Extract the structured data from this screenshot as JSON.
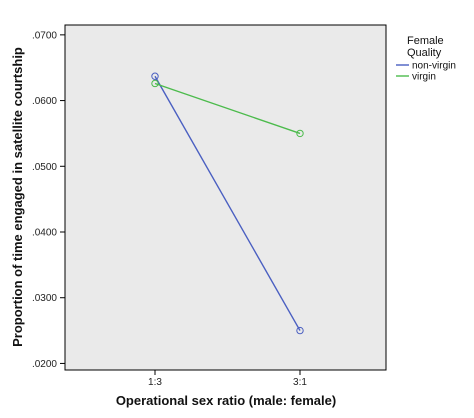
{
  "chart_data": {
    "type": "line",
    "xlabel": "Operational sex ratio (male: female)",
    "ylabel": "Proportion of time engaged in satellite courtship",
    "categories": [
      "1:3",
      "3:1"
    ],
    "yticks": [
      ".0200",
      ".0300",
      ".0400",
      ".0500",
      ".0600",
      ".0700"
    ],
    "ylim": [
      0.019,
      0.0715
    ],
    "grid": false,
    "legend": {
      "title_line1": "Female",
      "title_line2": "Quality",
      "placement": "right"
    },
    "series": [
      {
        "name": "non-virgin",
        "values": [
          0.0637,
          0.025
        ],
        "color": "#4a5fc1"
      },
      {
        "name": "virgin",
        "values": [
          0.0626,
          0.055
        ],
        "color": "#4cbb4c"
      }
    ]
  },
  "colors": {
    "plot_background": "#eaeaea",
    "axis": "#000000"
  }
}
